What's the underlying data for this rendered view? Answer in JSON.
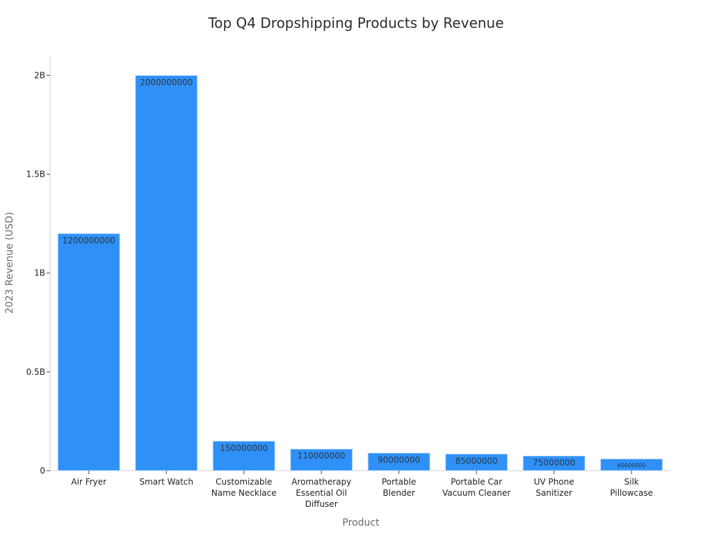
{
  "chart_data": {
    "type": "bar",
    "title": "Top Q4 Dropshipping Products by Revenue",
    "xlabel": "Product",
    "ylabel": "2023 Revenue (USD)",
    "categories": [
      [
        "Air Fryer"
      ],
      [
        "Smart Watch"
      ],
      [
        "Customizable",
        "Name Necklace"
      ],
      [
        "Aromatherapy",
        "Essential Oil",
        "Diffuser"
      ],
      [
        "Portable",
        "Blender"
      ],
      [
        "Portable Car",
        "Vacuum Cleaner"
      ],
      [
        "UV Phone",
        "Sanitizer"
      ],
      [
        "Silk",
        "Pillowcase"
      ]
    ],
    "values": [
      1200000000,
      2000000000,
      150000000,
      110000000,
      90000000,
      85000000,
      75000000,
      60000000
    ],
    "data_labels": [
      "1200000000",
      "2000000000",
      "150000000",
      "110000000",
      "90000000",
      "85000000",
      "75000000",
      "60000000"
    ],
    "ylim": [
      0,
      2100000000
    ],
    "yticks": [
      {
        "value": 0,
        "label": "0"
      },
      {
        "value": 500000000,
        "label": "0.5B"
      },
      {
        "value": 1000000000,
        "label": "1B"
      },
      {
        "value": 1500000000,
        "label": "1.5B"
      },
      {
        "value": 2000000000,
        "label": "2B"
      }
    ],
    "grid": false,
    "legend": "none",
    "colors": {
      "bar": "#2f91f8",
      "bar_edge": "#d8e8fb"
    }
  }
}
